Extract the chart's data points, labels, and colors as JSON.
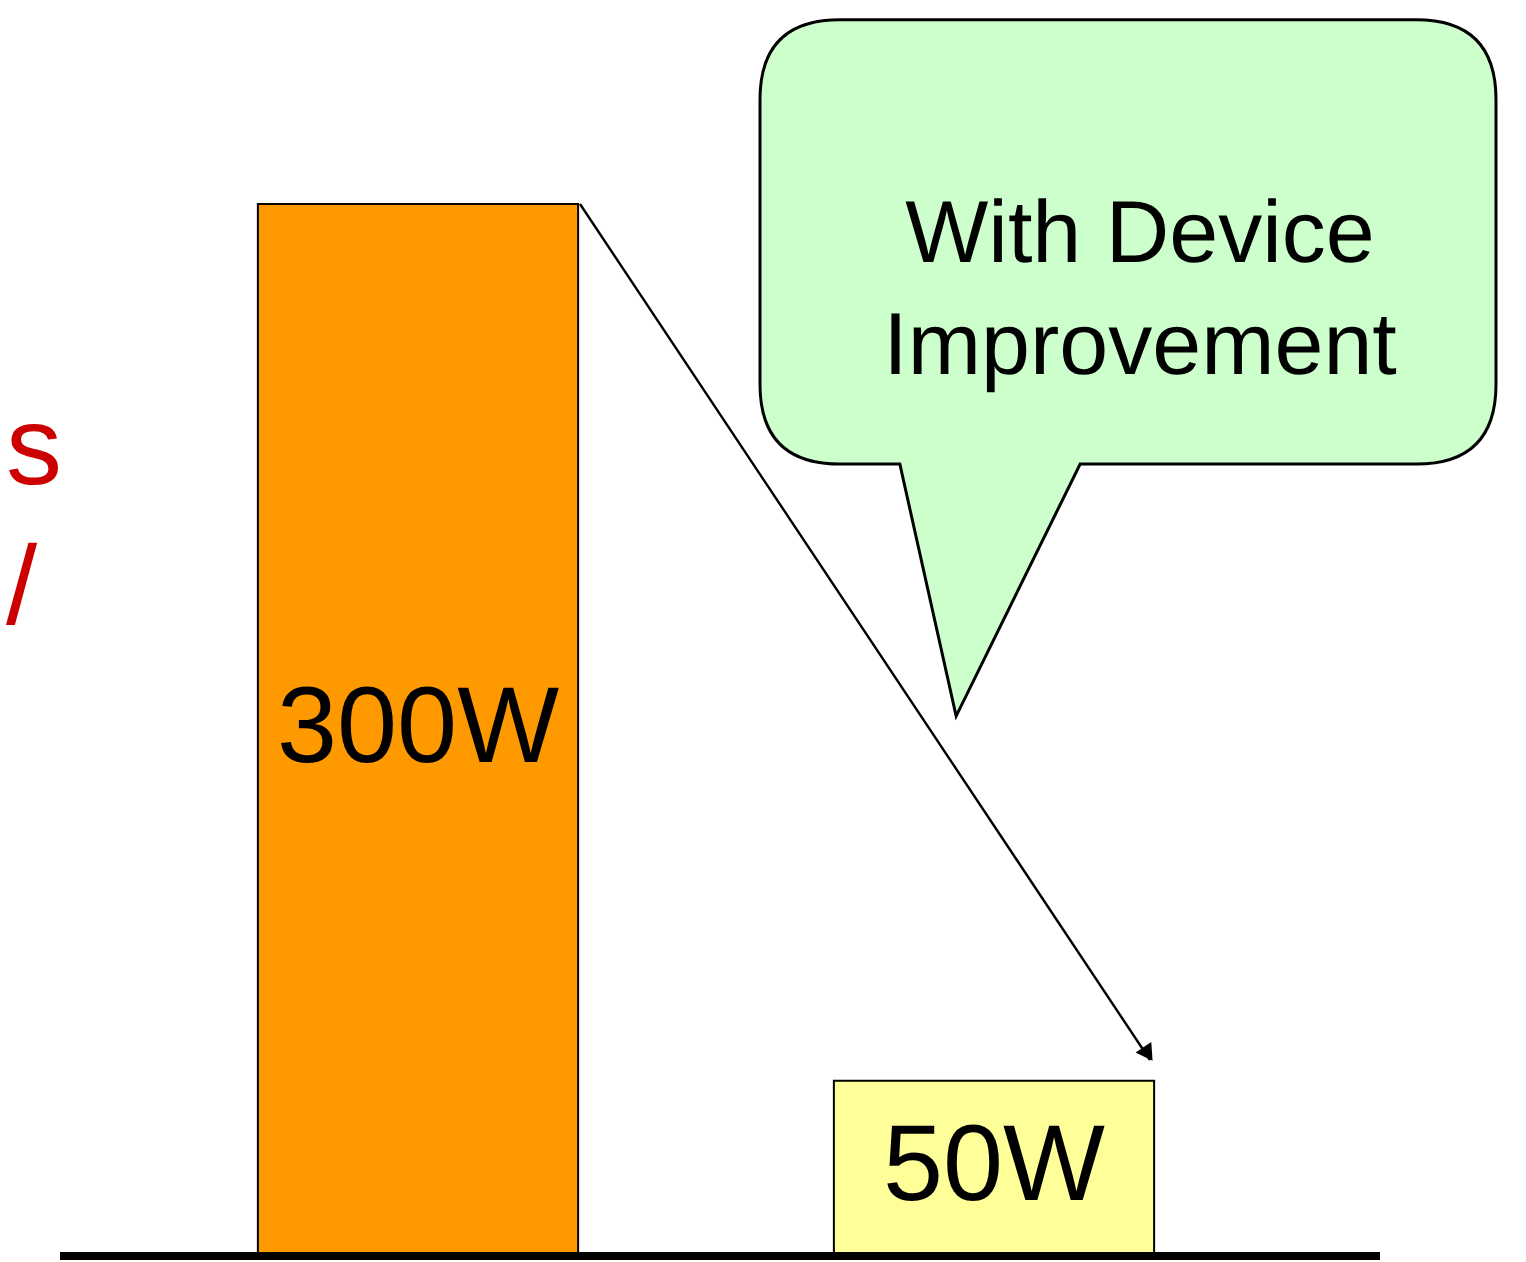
{
  "chart_data": {
    "type": "bar",
    "categories": [
      null,
      null
    ],
    "values": [
      300,
      50
    ],
    "colors": [
      "#ff9900",
      "#ffff99"
    ],
    "value_labels": [
      "300W",
      "50W"
    ],
    "annotations": [
      "With Device\nImprovement",
      "s",
      "/"
    ]
  }
}
